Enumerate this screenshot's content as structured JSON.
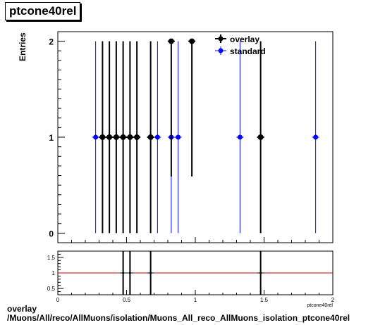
{
  "title": "ptcone40rel",
  "caption": {
    "line1": "overlay",
    "line2": "/Muons/All/reco/AllMuons/isolation/Muons_All_reco_AllMuons_isolation_ptcone40rel"
  },
  "chart_data": [
    {
      "type": "scatter",
      "ylabel": "Entries",
      "xlim": [
        0,
        2
      ],
      "ylim": [
        -0.1,
        2.1
      ],
      "yticks": [
        0,
        1,
        2
      ],
      "legend": "top-center",
      "series": [
        {
          "name": "overlay",
          "color": "#000000",
          "points": [
            {
              "x": 0.325,
              "y": 1,
              "err": 1
            },
            {
              "x": 0.375,
              "y": 1,
              "err": 1
            },
            {
              "x": 0.425,
              "y": 1,
              "err": 1
            },
            {
              "x": 0.475,
              "y": 1,
              "err": 1
            },
            {
              "x": 0.525,
              "y": 1,
              "err": 1
            },
            {
              "x": 0.575,
              "y": 1,
              "err": 1
            },
            {
              "x": 0.675,
              "y": 1,
              "err": 1
            },
            {
              "x": 0.825,
              "y": 2,
              "err": 1.41
            },
            {
              "x": 0.975,
              "y": 2,
              "err": 1.41
            },
            {
              "x": 1.475,
              "y": 1,
              "err": 1
            }
          ]
        },
        {
          "name": "standard",
          "color": "#0000ff",
          "points": [
            {
              "x": 0.275,
              "y": 1,
              "err": 1
            },
            {
              "x": 0.725,
              "y": 1,
              "err": 1
            },
            {
              "x": 0.825,
              "y": 1,
              "err": 1
            },
            {
              "x": 0.875,
              "y": 1,
              "err": 1
            },
            {
              "x": 1.325,
              "y": 1,
              "err": 1
            },
            {
              "x": 1.875,
              "y": 1,
              "err": 1
            }
          ]
        }
      ]
    },
    {
      "type": "scatter",
      "xlabel": "ptcone40rel",
      "xlim": [
        0,
        2
      ],
      "ylim": [
        0.3,
        1.7
      ],
      "xticks": [
        0,
        0.5,
        1,
        1.5,
        2
      ],
      "xticklabels": [
        "0",
        "0.5",
        "1",
        "1.5",
        "2"
      ],
      "yticks": [
        0.5,
        1,
        1.5
      ],
      "yticklabels": [
        "0.5",
        "1",
        "1.5"
      ],
      "reference_line": {
        "y": 1,
        "color": "#cc0000"
      },
      "ratio_points": [
        {
          "x": 0.475,
          "y": 1,
          "err": 1.41
        },
        {
          "x": 0.525,
          "y": 1,
          "err": 1.41
        },
        {
          "x": 0.675,
          "y": 1,
          "err": 1.41
        },
        {
          "x": 1.475,
          "y": 1,
          "err": 1.41
        }
      ]
    }
  ]
}
